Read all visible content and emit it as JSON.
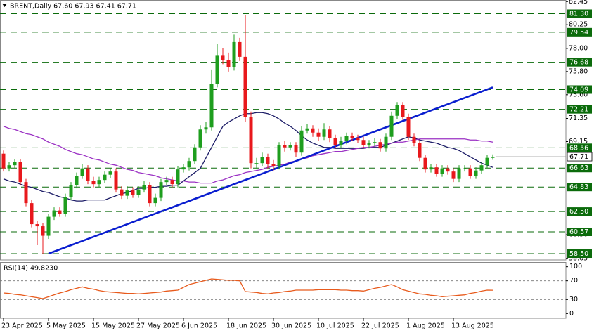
{
  "chart_data": [
    {
      "type": "candlestick",
      "title": "BRENT,Daily 67.60 67.93 67.41 67.71",
      "categories": [
        "23 Apr 2025",
        null,
        null,
        null,
        null,
        null,
        null,
        null,
        "5 May 2025",
        null,
        null,
        null,
        null,
        null,
        null,
        null,
        "15 May 2025",
        null,
        null,
        null,
        null,
        null,
        null,
        null,
        "27 May 2025",
        null,
        null,
        null,
        null,
        null,
        null,
        null,
        "6 Jun 2025",
        null,
        null,
        null,
        null,
        null,
        null,
        null,
        "18 Jun 2025",
        null,
        null,
        null,
        null,
        null,
        null,
        null,
        "30 Jun 2025",
        null,
        null,
        null,
        null,
        null,
        null,
        null,
        "10 Jul 2025",
        null,
        null,
        null,
        null,
        null,
        null,
        null,
        "22 Jul 2025",
        null,
        null,
        null,
        null,
        null,
        null,
        null,
        "1 Aug 2025",
        null,
        null,
        null,
        null,
        null,
        null,
        null,
        "13 Aug 2025",
        null,
        null,
        null,
        null,
        null,
        null,
        null
      ],
      "open": [
        68.0,
        66.6,
        66.9,
        67.2,
        65.3,
        63.3,
        61.3,
        61.1,
        60.2,
        62.0,
        62.6,
        62.3,
        63.9,
        65.0,
        65.9,
        66.6,
        65.4,
        65.1,
        65.5,
        66.0,
        66.3,
        64.6,
        64.0,
        64.5,
        64.1,
        64.6,
        65.0,
        63.3,
        63.8,
        65.3,
        65.5,
        65.1,
        66.5,
        66.7,
        67.3,
        68.6,
        70.3,
        70.5,
        74.6,
        77.3,
        76.9,
        76.2,
        78.6,
        77.2,
        71.5,
        67.1,
        67.1,
        67.7,
        67.0,
        66.8,
        68.8,
        68.6,
        68.8,
        68.1,
        70.2,
        70.4,
        70.0,
        69.6,
        70.3,
        69.5,
        68.8,
        69.2,
        69.7,
        69.5,
        69.3,
        68.8,
        69.0,
        69.1,
        68.5,
        69.6,
        71.6,
        72.6,
        71.5,
        69.6,
        69.0,
        67.6,
        66.5,
        66.7,
        66.1,
        66.6,
        66.3,
        65.6,
        66.6,
        66.6,
        65.9,
        66.4,
        66.9,
        67.6
      ],
      "high": [
        68.3,
        67.2,
        67.5,
        67.5,
        65.6,
        63.6,
        61.6,
        61.4,
        62.3,
        62.9,
        62.9,
        64.2,
        65.3,
        66.2,
        67.0,
        66.9,
        65.8,
        65.8,
        66.3,
        66.6,
        66.6,
        64.9,
        64.9,
        64.8,
        64.9,
        65.4,
        65.3,
        64.2,
        65.6,
        65.8,
        65.8,
        66.8,
        67.0,
        67.6,
        68.9,
        70.7,
        71.0,
        76.0,
        78.4,
        78.0,
        77.6,
        79.3,
        79.0,
        81.13,
        72.0,
        67.6,
        68.1,
        68.0,
        67.4,
        69.1,
        69.2,
        69.1,
        69.1,
        70.6,
        70.8,
        70.7,
        70.4,
        70.9,
        70.6,
        69.8,
        69.6,
        70.0,
        70.0,
        69.8,
        69.6,
        69.3,
        69.5,
        69.4,
        69.9,
        72.0,
        72.9,
        72.9,
        71.8,
        69.9,
        69.3,
        67.9,
        67.0,
        67.0,
        66.9,
        66.9,
        66.6,
        66.9,
        66.9,
        66.9,
        66.7,
        67.2,
        67.9,
        67.93
      ],
      "low": [
        66.3,
        66.3,
        66.6,
        65.0,
        63.0,
        61.0,
        59.3,
        58.5,
        59.9,
        61.7,
        62.0,
        62.0,
        63.6,
        64.7,
        65.6,
        65.1,
        64.8,
        64.8,
        65.2,
        65.7,
        64.3,
        63.7,
        63.7,
        63.8,
        63.8,
        64.3,
        63.0,
        63.0,
        63.5,
        65.0,
        64.8,
        64.8,
        66.2,
        66.4,
        67.0,
        68.3,
        69.9,
        70.2,
        74.3,
        76.5,
        75.8,
        75.9,
        76.8,
        71.0,
        66.6,
        66.5,
        66.8,
        66.6,
        66.4,
        66.5,
        68.2,
        68.3,
        67.7,
        67.8,
        69.9,
        69.6,
        69.2,
        69.3,
        69.1,
        68.5,
        68.5,
        68.9,
        69.2,
        69.0,
        68.5,
        68.5,
        68.7,
        68.2,
        68.2,
        69.3,
        71.3,
        71.2,
        69.3,
        68.7,
        67.3,
        66.2,
        66.2,
        65.8,
        65.8,
        66.0,
        65.3,
        65.3,
        66.3,
        65.6,
        65.6,
        66.1,
        66.6,
        67.41
      ],
      "close": [
        66.6,
        66.9,
        67.2,
        65.3,
        63.3,
        61.3,
        61.1,
        60.2,
        62.0,
        62.6,
        62.3,
        63.9,
        65.0,
        65.9,
        66.6,
        65.4,
        65.1,
        65.5,
        66.0,
        66.3,
        64.6,
        64.0,
        64.5,
        64.1,
        64.6,
        65.0,
        63.3,
        63.8,
        65.3,
        65.5,
        65.1,
        66.5,
        66.7,
        67.3,
        68.6,
        70.3,
        70.5,
        74.6,
        77.3,
        76.9,
        76.2,
        78.6,
        77.2,
        71.5,
        67.1,
        67.1,
        67.7,
        67.0,
        66.8,
        68.8,
        68.6,
        68.8,
        68.1,
        70.2,
        70.4,
        70.0,
        69.6,
        70.3,
        69.5,
        68.8,
        69.2,
        69.7,
        69.5,
        69.3,
        68.8,
        69.0,
        69.1,
        68.5,
        69.6,
        71.6,
        72.6,
        71.5,
        69.6,
        69.0,
        67.6,
        66.5,
        66.7,
        66.1,
        66.6,
        66.3,
        65.6,
        66.6,
        66.6,
        65.9,
        66.4,
        66.9,
        67.6,
        67.71
      ],
      "up_color": "#1e9e1e",
      "down_color": "#e8181c",
      "lines": [
        {
          "color": "#1b1b66",
          "values": [
            65.6,
            65.4,
            65.3,
            65.1,
            64.9,
            64.8,
            64.6,
            64.4,
            64.3,
            64.1,
            63.9,
            63.8,
            63.6,
            63.5,
            63.5,
            63.6,
            63.6,
            63.6,
            63.6,
            63.8,
            64.0,
            64.2,
            64.3,
            64.5,
            64.7,
            64.7,
            64.8,
            64.8,
            64.9,
            64.9,
            65.0,
            65.0,
            65.4,
            65.8,
            66.2,
            66.6,
            67.6,
            68.6,
            69.6,
            70.6,
            71.0,
            71.3,
            71.6,
            71.8,
            71.8,
            71.9,
            71.9,
            71.8,
            71.6,
            71.3,
            70.9,
            70.6,
            70.2,
            69.7,
            69.3,
            69.0,
            68.8,
            68.6,
            68.6,
            68.5,
            68.5,
            68.5,
            68.5,
            68.5,
            68.5,
            68.6,
            68.6,
            68.6,
            68.8,
            69.0,
            69.2,
            69.4,
            69.6,
            69.5,
            69.3,
            69.2,
            69.1,
            69.0,
            68.8,
            68.6,
            68.5,
            68.3,
            68.0,
            67.7,
            67.4,
            67.1,
            66.9,
            66.7
          ]
        },
        {
          "color": "#9b32c4",
          "values": [
            70.6,
            70.4,
            70.3,
            70.1,
            69.9,
            69.8,
            69.6,
            69.4,
            69.1,
            68.9,
            68.7,
            68.4,
            68.2,
            68.0,
            67.9,
            67.7,
            67.5,
            67.4,
            67.2,
            67.0,
            66.9,
            66.7,
            66.5,
            66.4,
            66.2,
            66.1,
            66.0,
            65.9,
            65.7,
            65.6,
            65.5,
            65.4,
            65.4,
            65.3,
            65.3,
            65.2,
            65.2,
            65.2,
            65.4,
            65.5,
            65.7,
            65.9,
            66.0,
            66.2,
            66.3,
            66.4,
            66.5,
            66.7,
            66.8,
            66.9,
            67.0,
            67.2,
            67.3,
            67.5,
            67.6,
            67.8,
            67.9,
            68.0,
            68.1,
            68.2,
            68.2,
            68.3,
            68.4,
            68.5,
            68.6,
            68.6,
            68.7,
            68.8,
            68.9,
            69.0,
            69.1,
            69.1,
            69.2,
            69.3,
            69.4,
            69.4,
            69.4,
            69.4,
            69.4,
            69.4,
            69.4,
            69.4,
            69.4,
            69.3,
            69.3,
            69.2,
            69.2,
            69.1
          ]
        },
        {
          "color": "#0a1ecf",
          "values": [
            null,
            null,
            null,
            null,
            null,
            null,
            null,
            null,
            58.5,
            58.7,
            58.9,
            59.1,
            59.3,
            59.5,
            59.7,
            59.9,
            60.1,
            60.3,
            60.5,
            60.7,
            60.9,
            61.1,
            61.3,
            61.5,
            61.7,
            61.9,
            62.1,
            62.3,
            62.5,
            62.7,
            62.9,
            63.1,
            63.3,
            63.5,
            63.7,
            63.9,
            64.1,
            64.3,
            64.5,
            64.7,
            64.9,
            65.1,
            65.3,
            65.5,
            65.7,
            65.9,
            66.1,
            66.3,
            66.5,
            66.7,
            66.9,
            67.1,
            67.3,
            67.5,
            67.7,
            67.9,
            68.1,
            68.3,
            68.5,
            68.7,
            68.9,
            69.1,
            69.3,
            69.5,
            69.7,
            69.9,
            70.1,
            70.3,
            70.5,
            70.7,
            70.9,
            71.1,
            71.3,
            71.5,
            71.7,
            71.9,
            72.1,
            72.3,
            72.5,
            72.7,
            72.9,
            73.1,
            73.3,
            73.5,
            73.7,
            73.9,
            74.1,
            74.3
          ]
        }
      ],
      "levels": [
        {
          "value": 81.3,
          "label": "81.30"
        },
        79.54,
        76.68,
        74.09,
        72.21,
        68.56,
        66.63,
        64.83,
        {
          "value": 62.5,
          "label": "62.50"
        },
        60.57,
        {
          "value": 58.5,
          "label": "58.50"
        }
      ],
      "level_color": "#0b6b0b",
      "last_price": {
        "value": 67.71,
        "label": "67.71"
      },
      "ylim": [
        57.9,
        82.6
      ],
      "yticks": [
        82.45,
        80.25,
        {
          "value": 78,
          "label": "78.00"
        },
        {
          "value": 75.8,
          "label": "75.80"
        },
        {
          "value": 73.6,
          "label": "73.60"
        },
        71.35,
        69.15,
        {
          "value": 60.3,
          "label": "60.30"
        },
        58.05
      ]
    },
    {
      "type": "line",
      "title": "RSI(14) 49.8230",
      "color": "#e85a1c",
      "values": [
        44,
        43,
        41,
        40,
        38,
        36,
        34,
        32,
        36,
        40,
        44,
        47,
        51,
        54,
        57,
        54,
        52,
        49,
        47,
        46,
        45,
        44,
        43,
        43,
        42,
        43,
        44,
        45,
        46,
        48,
        49,
        50,
        56,
        62,
        65,
        68,
        71,
        74,
        73,
        72,
        71,
        71,
        70,
        47,
        46,
        45,
        43,
        42,
        44,
        45,
        47,
        48,
        50,
        50,
        50,
        50,
        51,
        51,
        51,
        51,
        50,
        50,
        49,
        49,
        48,
        51,
        54,
        56,
        59,
        62,
        57,
        51,
        48,
        45,
        42,
        41,
        39,
        38,
        36,
        37,
        38,
        39,
        40,
        43,
        45,
        48,
        50,
        49.823
      ],
      "levels": [
        70,
        30
      ],
      "ylim": [
        -10,
        110
      ],
      "yticks": [
        100,
        70,
        30,
        0
      ]
    }
  ]
}
